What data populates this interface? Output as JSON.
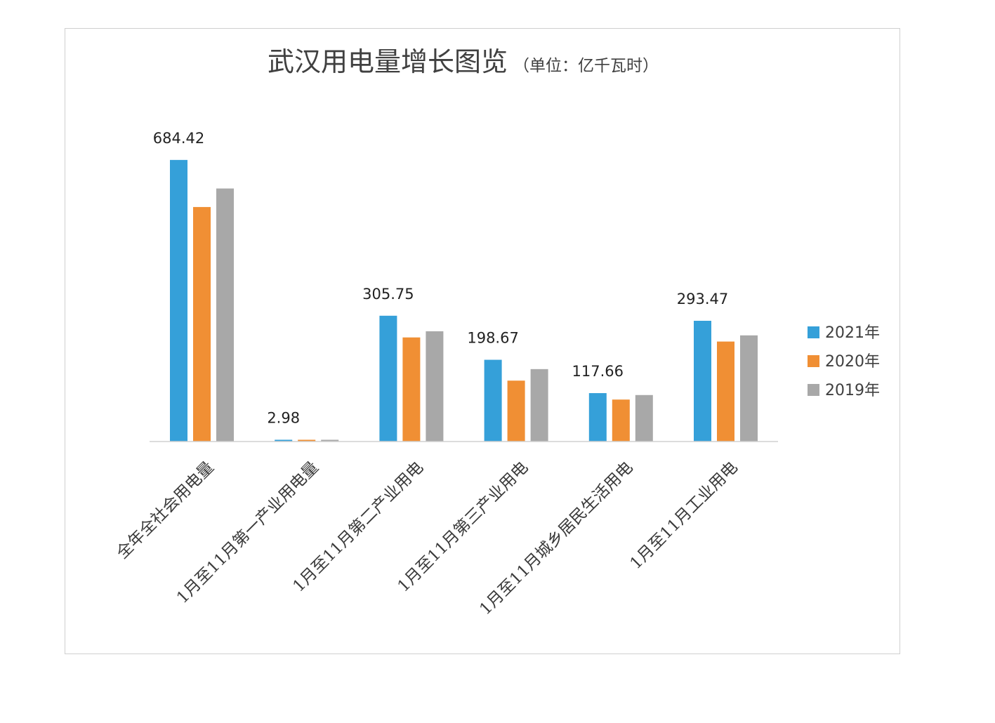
{
  "chart_data": {
    "type": "bar",
    "title": "武汉用电量增长图览",
    "subtitle": "（单位：亿千瓦时）",
    "categories": [
      "全年全社会用电量",
      "1月至11月第一产业用电量",
      "1月至11月第二产业用电",
      "1月至11月第三产业用电",
      "1月至11月城乡居民生活用电",
      "1月至11月工业用电"
    ],
    "series": [
      {
        "name": "2021年",
        "color": "#35a0d9",
        "values": [
          684.42,
          2.98,
          305.75,
          198.67,
          117.66,
          293.47
        ]
      },
      {
        "name": "2020年",
        "color": "#f08f34",
        "values": [
          570,
          3.0,
          253,
          148,
          102,
          243
        ]
      },
      {
        "name": "2019年",
        "color": "#a8a8a8",
        "values": [
          615,
          2.6,
          268,
          176,
          113,
          258
        ]
      }
    ],
    "data_labels": [
      "684.42",
      "2.98",
      "305.75",
      "198.67",
      "117.66",
      "293.47"
    ],
    "ylim": [
      0,
      720
    ],
    "grid": false,
    "legend_position": "right"
  }
}
